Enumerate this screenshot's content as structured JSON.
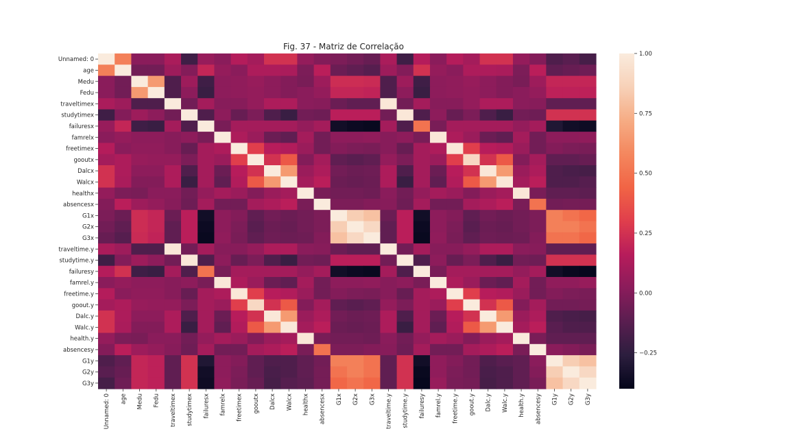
{
  "chart_data": {
    "type": "heatmap",
    "title": "Fig. 37 - Matriz de Correlação",
    "labels": [
      "Unnamed: 0",
      "age",
      "Medu",
      "Fedu",
      "traveltimex",
      "studytimex",
      "failuresx",
      "famrelx",
      "freetimex",
      "gooutx",
      "Dalcx",
      "Walcx",
      "healthx",
      "absencesx",
      "G1x",
      "G2x",
      "G3x",
      "traveltime.y",
      "studytime.y",
      "failuresy",
      "famrel.y",
      "freetime.y",
      "goout.y",
      "Dalc.y",
      "Walc.y",
      "health.y",
      "absencesy",
      "G1y",
      "G2y",
      "G3y"
    ],
    "colorbar": {
      "min": -0.4,
      "max": 1.0,
      "ticks": [
        1.0,
        0.75,
        0.5,
        0.25,
        0.0,
        -0.25
      ],
      "tick_labels": [
        "1.00",
        "0.75",
        "0.50",
        "0.25",
        "0.00",
        "−0.25"
      ]
    },
    "colormap": [
      "#03051a",
      "#2c1e3e",
      "#591e50",
      "#8a1c5b",
      "#b71c5b",
      "#e03e4c",
      "#f16445",
      "#f4875e",
      "#f6ac84",
      "#f7d1b8",
      "#faebdd"
    ],
    "values": [
      [
        1.0,
        0.55,
        0.02,
        0.02,
        0.12,
        -0.2,
        0.06,
        0.02,
        0.15,
        0.1,
        0.25,
        0.25,
        0.05,
        0.0,
        -0.02,
        -0.05,
        -0.08,
        0.12,
        -0.2,
        0.15,
        0.02,
        0.15,
        0.1,
        0.25,
        0.25,
        0.05,
        0.0,
        -0.15,
        -0.12,
        -0.18
      ],
      [
        0.55,
        1.0,
        -0.05,
        -0.05,
        0.08,
        0.0,
        0.2,
        0.05,
        0.02,
        0.13,
        0.13,
        0.12,
        -0.02,
        0.17,
        -0.07,
        -0.1,
        -0.13,
        0.08,
        0.0,
        0.25,
        0.05,
        0.02,
        0.13,
        0.13,
        0.12,
        -0.02,
        0.17,
        -0.1,
        -0.08,
        -0.06
      ],
      [
        0.02,
        -0.05,
        1.0,
        0.65,
        -0.15,
        0.08,
        -0.2,
        0.03,
        0.04,
        0.06,
        0.03,
        0.0,
        -0.03,
        0.08,
        0.23,
        0.23,
        0.22,
        -0.15,
        0.08,
        -0.2,
        0.03,
        0.04,
        0.06,
        0.03,
        0.0,
        -0.03,
        0.08,
        0.2,
        0.2,
        0.2
      ],
      [
        0.02,
        -0.05,
        0.65,
        1.0,
        -0.15,
        0.03,
        -0.22,
        0.03,
        0.04,
        0.05,
        0.03,
        0.0,
        0.02,
        0.05,
        0.2,
        0.2,
        0.19,
        -0.15,
        0.03,
        -0.22,
        0.03,
        0.04,
        0.05,
        0.03,
        0.0,
        0.02,
        0.05,
        0.18,
        0.18,
        0.18
      ],
      [
        0.12,
        0.08,
        -0.15,
        -0.15,
        1.0,
        -0.05,
        0.1,
        0.01,
        0.01,
        0.05,
        0.13,
        0.13,
        0.02,
        0.01,
        -0.07,
        -0.1,
        -0.1,
        0.98,
        -0.05,
        0.1,
        0.01,
        0.01,
        0.05,
        0.13,
        0.13,
        0.02,
        0.01,
        -0.1,
        -0.1,
        -0.1
      ],
      [
        -0.2,
        0.0,
        0.08,
        0.03,
        -0.05,
        1.0,
        -0.15,
        0.03,
        -0.08,
        -0.02,
        -0.15,
        -0.22,
        -0.05,
        -0.06,
        0.17,
        0.17,
        0.17,
        -0.05,
        0.98,
        -0.15,
        0.03,
        -0.08,
        -0.02,
        -0.15,
        -0.22,
        -0.05,
        -0.06,
        0.25,
        0.25,
        0.25
      ],
      [
        0.06,
        0.2,
        -0.2,
        -0.22,
        0.1,
        -0.15,
        1.0,
        -0.03,
        0.1,
        0.1,
        0.1,
        0.1,
        0.05,
        0.1,
        -0.35,
        -0.37,
        -0.38,
        0.1,
        -0.15,
        0.5,
        -0.03,
        0.1,
        0.1,
        0.1,
        0.1,
        0.05,
        0.1,
        -0.3,
        -0.35,
        -0.36
      ],
      [
        0.02,
        0.05,
        0.03,
        0.03,
        0.01,
        0.03,
        -0.03,
        1.0,
        0.13,
        0.07,
        -0.07,
        -0.1,
        0.1,
        -0.05,
        0.03,
        0.03,
        0.04,
        0.01,
        0.03,
        -0.03,
        0.98,
        0.13,
        0.07,
        -0.07,
        -0.1,
        0.1,
        -0.05,
        0.03,
        0.03,
        0.04
      ],
      [
        0.15,
        0.02,
        0.04,
        0.04,
        0.01,
        -0.08,
        0.1,
        0.13,
        1.0,
        0.3,
        0.16,
        0.14,
        0.07,
        -0.05,
        0.0,
        -0.02,
        -0.03,
        0.01,
        -0.08,
        0.1,
        0.13,
        0.98,
        0.3,
        0.16,
        0.14,
        0.07,
        -0.05,
        0.0,
        -0.02,
        -0.03
      ],
      [
        0.1,
        0.13,
        0.06,
        0.05,
        0.05,
        -0.02,
        0.1,
        0.07,
        0.3,
        1.0,
        0.25,
        0.4,
        0.0,
        0.1,
        -0.1,
        -0.12,
        -0.1,
        0.05,
        -0.02,
        0.1,
        0.07,
        0.3,
        0.9,
        0.25,
        0.4,
        0.0,
        0.1,
        -0.1,
        -0.1,
        -0.08
      ],
      [
        0.25,
        0.13,
        0.03,
        0.03,
        0.13,
        -0.15,
        0.1,
        -0.07,
        0.16,
        0.25,
        1.0,
        0.65,
        0.07,
        0.13,
        -0.05,
        -0.07,
        -0.06,
        0.13,
        -0.15,
        0.1,
        -0.07,
        0.16,
        0.25,
        0.98,
        0.65,
        0.07,
        0.13,
        -0.15,
        -0.17,
        -0.18
      ],
      [
        0.25,
        0.12,
        0.0,
        0.0,
        0.13,
        -0.22,
        0.1,
        -0.1,
        0.14,
        0.4,
        0.65,
        1.0,
        0.1,
        0.17,
        -0.07,
        -0.08,
        -0.07,
        0.13,
        -0.22,
        0.1,
        -0.1,
        0.14,
        0.4,
        0.65,
        0.98,
        0.1,
        0.17,
        -0.15,
        -0.15,
        -0.13
      ],
      [
        0.05,
        -0.02,
        -0.03,
        0.02,
        0.02,
        -0.05,
        0.05,
        0.1,
        0.07,
        0.0,
        0.07,
        0.1,
        1.0,
        -0.03,
        -0.05,
        -0.05,
        -0.06,
        0.02,
        -0.05,
        0.05,
        0.1,
        0.07,
        0.0,
        0.07,
        0.1,
        0.98,
        -0.03,
        -0.1,
        -0.1,
        -0.11
      ],
      [
        0.0,
        0.17,
        0.08,
        0.05,
        0.01,
        -0.06,
        0.1,
        -0.05,
        -0.05,
        0.1,
        0.13,
        0.17,
        -0.03,
        1.0,
        -0.02,
        -0.02,
        0.0,
        0.01,
        -0.06,
        0.1,
        -0.05,
        -0.05,
        0.1,
        0.13,
        0.17,
        -0.03,
        0.5,
        -0.05,
        -0.04,
        -0.04
      ],
      [
        -0.02,
        -0.07,
        0.23,
        0.2,
        -0.07,
        0.17,
        -0.35,
        0.03,
        0.0,
        -0.1,
        -0.05,
        -0.07,
        -0.05,
        -0.02,
        1.0,
        0.85,
        0.8,
        -0.07,
        0.17,
        -0.35,
        0.03,
        0.0,
        -0.1,
        -0.05,
        -0.07,
        -0.05,
        -0.02,
        0.55,
        0.5,
        0.45
      ],
      [
        -0.05,
        -0.1,
        0.23,
        0.2,
        -0.1,
        0.17,
        -0.37,
        0.03,
        -0.02,
        -0.12,
        -0.07,
        -0.08,
        -0.05,
        -0.02,
        0.85,
        1.0,
        0.9,
        -0.1,
        0.17,
        -0.37,
        0.03,
        -0.02,
        -0.12,
        -0.07,
        -0.08,
        -0.05,
        -0.02,
        0.55,
        0.55,
        0.5
      ],
      [
        -0.08,
        -0.13,
        0.22,
        0.19,
        -0.1,
        0.17,
        -0.38,
        0.04,
        -0.03,
        -0.1,
        -0.06,
        -0.07,
        -0.06,
        0.0,
        0.8,
        0.9,
        1.0,
        -0.1,
        0.17,
        -0.38,
        0.04,
        -0.03,
        -0.1,
        -0.06,
        -0.07,
        -0.06,
        0.0,
        0.5,
        0.5,
        0.45
      ],
      [
        0.12,
        0.08,
        -0.15,
        -0.15,
        0.98,
        -0.05,
        0.1,
        0.01,
        0.01,
        0.05,
        0.13,
        0.13,
        0.02,
        0.01,
        -0.07,
        -0.1,
        -0.1,
        1.0,
        -0.05,
        0.1,
        0.01,
        0.01,
        0.05,
        0.13,
        0.13,
        0.02,
        0.01,
        -0.1,
        -0.1,
        -0.1
      ],
      [
        -0.2,
        0.0,
        0.08,
        0.03,
        -0.05,
        0.98,
        -0.15,
        0.03,
        -0.08,
        -0.02,
        -0.15,
        -0.22,
        -0.05,
        -0.06,
        0.17,
        0.17,
        0.17,
        -0.05,
        1.0,
        -0.15,
        0.03,
        -0.08,
        -0.02,
        -0.15,
        -0.22,
        -0.05,
        -0.06,
        0.25,
        0.25,
        0.25
      ],
      [
        0.15,
        0.25,
        -0.2,
        -0.22,
        0.1,
        -0.15,
        0.5,
        -0.03,
        0.1,
        0.1,
        0.1,
        0.1,
        0.05,
        0.1,
        -0.35,
        -0.37,
        -0.38,
        0.1,
        -0.15,
        1.0,
        -0.03,
        0.1,
        0.1,
        0.1,
        0.1,
        0.05,
        0.1,
        -0.35,
        -0.38,
        -0.39
      ],
      [
        0.02,
        0.05,
        0.03,
        0.03,
        0.01,
        0.03,
        -0.03,
        0.98,
        0.13,
        0.07,
        -0.07,
        -0.1,
        0.1,
        -0.05,
        0.03,
        0.03,
        0.04,
        0.01,
        0.03,
        -0.03,
        1.0,
        0.13,
        0.07,
        -0.07,
        -0.1,
        0.1,
        -0.05,
        0.04,
        0.04,
        0.06
      ],
      [
        0.15,
        0.02,
        0.04,
        0.04,
        0.01,
        -0.08,
        0.1,
        0.13,
        0.98,
        0.3,
        0.16,
        0.14,
        0.07,
        -0.05,
        0.0,
        -0.02,
        -0.03,
        0.01,
        -0.08,
        0.1,
        0.13,
        1.0,
        0.3,
        0.16,
        0.14,
        0.07,
        -0.05,
        0.0,
        -0.02,
        -0.03
      ],
      [
        0.1,
        0.13,
        0.06,
        0.05,
        0.05,
        -0.02,
        0.1,
        0.07,
        0.3,
        0.9,
        0.25,
        0.4,
        0.0,
        0.1,
        -0.1,
        -0.12,
        -0.1,
        0.05,
        -0.02,
        0.1,
        0.07,
        0.3,
        1.0,
        0.25,
        0.4,
        0.0,
        0.1,
        -0.05,
        -0.05,
        -0.04
      ],
      [
        0.25,
        0.13,
        0.03,
        0.03,
        0.13,
        -0.15,
        0.1,
        -0.07,
        0.16,
        0.25,
        0.98,
        0.65,
        0.07,
        0.13,
        -0.05,
        -0.07,
        -0.06,
        0.13,
        -0.15,
        0.1,
        -0.07,
        0.16,
        0.25,
        1.0,
        0.65,
        0.07,
        0.13,
        -0.15,
        -0.17,
        -0.18
      ],
      [
        0.25,
        0.12,
        0.0,
        0.0,
        0.13,
        -0.22,
        0.1,
        -0.1,
        0.14,
        0.4,
        0.65,
        0.98,
        0.1,
        0.17,
        -0.07,
        -0.08,
        -0.07,
        0.13,
        -0.22,
        0.1,
        -0.1,
        0.14,
        0.4,
        0.65,
        1.0,
        0.1,
        0.17,
        -0.12,
        -0.15,
        -0.15
      ],
      [
        0.05,
        -0.02,
        -0.03,
        0.02,
        0.02,
        -0.05,
        0.05,
        0.1,
        0.07,
        0.0,
        0.07,
        0.1,
        0.98,
        -0.03,
        -0.05,
        -0.05,
        -0.06,
        0.02,
        -0.05,
        0.05,
        0.1,
        0.07,
        0.0,
        0.07,
        0.1,
        1.0,
        -0.03,
        -0.1,
        -0.1,
        -0.1
      ],
      [
        0.0,
        0.17,
        0.08,
        0.05,
        0.01,
        -0.06,
        0.1,
        -0.05,
        -0.05,
        0.1,
        0.13,
        0.17,
        -0.03,
        0.5,
        -0.02,
        -0.02,
        0.0,
        0.01,
        -0.06,
        0.1,
        -0.05,
        -0.05,
        0.1,
        0.13,
        0.17,
        -0.03,
        1.0,
        0.02,
        0.0,
        -0.03
      ],
      [
        -0.15,
        -0.1,
        0.2,
        0.18,
        -0.1,
        0.25,
        -0.3,
        0.03,
        0.0,
        -0.1,
        -0.15,
        -0.15,
        -0.1,
        -0.05,
        0.55,
        0.55,
        0.5,
        -0.1,
        0.25,
        -0.35,
        0.04,
        0.0,
        -0.05,
        -0.15,
        -0.12,
        -0.1,
        0.02,
        1.0,
        0.85,
        0.8
      ],
      [
        -0.12,
        -0.08,
        0.2,
        0.18,
        -0.1,
        0.25,
        -0.35,
        0.03,
        -0.02,
        -0.1,
        -0.17,
        -0.15,
        -0.1,
        -0.04,
        0.5,
        0.55,
        0.5,
        -0.1,
        0.25,
        -0.38,
        0.04,
        -0.02,
        -0.05,
        -0.17,
        -0.15,
        -0.1,
        0.0,
        0.85,
        1.0,
        0.9
      ],
      [
        -0.18,
        -0.06,
        0.2,
        0.18,
        -0.1,
        0.25,
        -0.36,
        0.04,
        -0.03,
        -0.08,
        -0.18,
        -0.13,
        -0.11,
        -0.04,
        0.45,
        0.5,
        0.45,
        -0.1,
        0.25,
        -0.39,
        0.06,
        -0.03,
        -0.04,
        -0.18,
        -0.15,
        -0.1,
        -0.03,
        0.8,
        0.9,
        1.0
      ]
    ]
  }
}
